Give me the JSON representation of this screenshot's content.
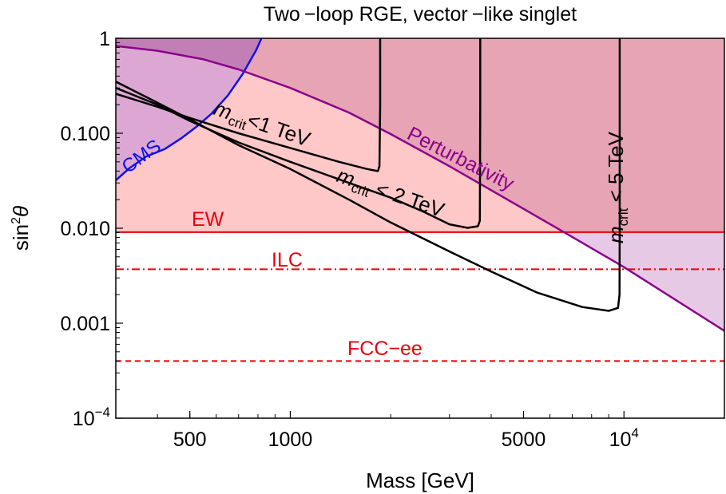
{
  "chart_data": {
    "type": "line",
    "title": "Two −loop RGE, vector −like singlet",
    "xlabel": "Mass [GeV]",
    "ylabel": {
      "base": "sin",
      "sup": "2",
      "greek": "θ"
    },
    "x_scale": "log",
    "y_scale": "log",
    "xlim": [
      300,
      20000
    ],
    "ylim": [
      0.0001,
      1
    ],
    "x_ticks": [
      {
        "value": 500,
        "label": "500"
      },
      {
        "value": 1000,
        "label": "1000"
      },
      {
        "value": 5000,
        "label": "5000"
      },
      {
        "value": 10000,
        "label": "10",
        "sup": "4"
      }
    ],
    "y_ticks": [
      {
        "value": 1,
        "label": "1"
      },
      {
        "value": 0.1,
        "label": "0.100"
      },
      {
        "value": 0.01,
        "label": "0.010"
      },
      {
        "value": 0.001,
        "label": "0.001"
      },
      {
        "value": 0.0001,
        "label": "10",
        "sup": "−4"
      }
    ],
    "colors": {
      "pink_region": "#ffc8c8",
      "perturbativity_region": "#e6a4b4",
      "cms_region": "#dca8d3",
      "cms_overlap_region": "#c27fb6",
      "lavender_region": "#e5c9e5",
      "ew": "#e8000b",
      "cms": "#1010e8",
      "perturbativity": "#8b008b",
      "mcrit": "#000000"
    },
    "series": [
      {
        "name": "EW",
        "style": "solid",
        "color": "#e8000b",
        "points": [
          [
            300,
            0.0091
          ],
          [
            20000,
            0.0091
          ]
        ]
      },
      {
        "name": "ILC",
        "style": "dashdot",
        "color": "#e8000b",
        "points": [
          [
            300,
            0.0037
          ],
          [
            20000,
            0.0037
          ]
        ]
      },
      {
        "name": "FCC−ee",
        "style": "dashed",
        "color": "#e8000b",
        "points": [
          [
            300,
            0.0004
          ],
          [
            20000,
            0.0004
          ]
        ]
      },
      {
        "name": "CMS",
        "style": "solid",
        "color": "#1010e8",
        "points": [
          [
            300,
            0.032
          ],
          [
            330,
            0.043
          ],
          [
            370,
            0.057
          ],
          [
            420,
            0.068
          ],
          [
            470,
            0.088
          ],
          [
            520,
            0.115
          ],
          [
            580,
            0.16
          ],
          [
            650,
            0.25
          ],
          [
            720,
            0.42
          ],
          [
            790,
            0.75
          ],
          [
            820,
            1.0
          ]
        ]
      },
      {
        "name": "Perturbativity",
        "style": "solid",
        "color": "#8b008b",
        "points": [
          [
            300,
            0.83
          ],
          [
            400,
            0.74
          ],
          [
            550,
            0.6
          ],
          [
            700,
            0.47
          ],
          [
            1000,
            0.3
          ],
          [
            1500,
            0.165
          ],
          [
            2000,
            0.098
          ],
          [
            3000,
            0.045
          ],
          [
            5000,
            0.016
          ],
          [
            7000,
            0.0081
          ],
          [
            10000,
            0.0039
          ],
          [
            20000,
            0.00083
          ]
        ]
      },
      {
        "name": "m_crit < 1 TeV",
        "style": "solid",
        "color": "#000000",
        "points": [
          [
            300,
            0.26
          ],
          [
            400,
            0.19
          ],
          [
            500,
            0.145
          ],
          [
            700,
            0.1
          ],
          [
            1000,
            0.07
          ],
          [
            1400,
            0.05
          ],
          [
            1700,
            0.042
          ],
          [
            1830,
            0.04
          ],
          [
            1850,
            0.045
          ],
          [
            1860,
            0.2
          ],
          [
            1860,
            1.0
          ]
        ]
      },
      {
        "name": "m_crit < 2 TeV",
        "style": "solid",
        "color": "#000000",
        "points": [
          [
            300,
            0.3
          ],
          [
            400,
            0.2
          ],
          [
            500,
            0.135
          ],
          [
            700,
            0.08
          ],
          [
            1000,
            0.05
          ],
          [
            1500,
            0.03
          ],
          [
            2000,
            0.021
          ],
          [
            2500,
            0.015
          ],
          [
            3000,
            0.011
          ],
          [
            3400,
            0.0101
          ],
          [
            3650,
            0.0105
          ],
          [
            3700,
            0.012
          ],
          [
            3710,
            0.2
          ],
          [
            3710,
            1.0
          ]
        ]
      },
      {
        "name": "m_crit < 5 TeV",
        "style": "solid",
        "color": "#000000",
        "points": [
          [
            300,
            0.35
          ],
          [
            400,
            0.21
          ],
          [
            500,
            0.14
          ],
          [
            700,
            0.075
          ],
          [
            1000,
            0.042
          ],
          [
            1500,
            0.02
          ],
          [
            2000,
            0.0115
          ],
          [
            3000,
            0.0057
          ],
          [
            4000,
            0.0035
          ],
          [
            5500,
            0.0021
          ],
          [
            7500,
            0.00148
          ],
          [
            9000,
            0.00135
          ],
          [
            9600,
            0.00145
          ],
          [
            9700,
            0.002
          ],
          [
            9710,
            0.01
          ],
          [
            9710,
            1.0
          ]
        ]
      }
    ],
    "annotations": [
      {
        "text": "EW",
        "color": "#e8000b"
      },
      {
        "text": "ILC",
        "color": "#e8000b"
      },
      {
        "text": "FCC−ee",
        "color": "#e8000b"
      },
      {
        "text": "CMS",
        "color": "#1010e8"
      },
      {
        "text": "Perturbativity",
        "color": "#8b008b"
      },
      {
        "text": "m",
        "sub": "crit",
        "rest": "<1 TeV",
        "color": "#000000"
      },
      {
        "text": "m",
        "sub": "crit",
        "rest": " < 2 TeV",
        "color": "#000000"
      },
      {
        "text": "m",
        "sub": "crit",
        "rest": " < 5 TeV",
        "color": "#000000"
      }
    ]
  }
}
